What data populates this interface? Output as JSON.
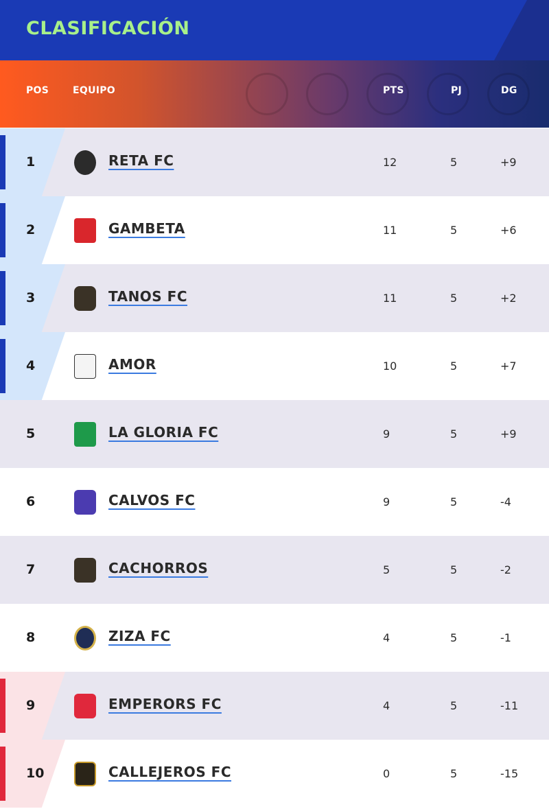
{
  "title": "CLASIFICACIÓN",
  "columns": {
    "pos": "POS",
    "team": "EQUIPO",
    "pts": "PTS",
    "pj": "PJ",
    "dg": "DG"
  },
  "colors": {
    "title_bg": "#1a3ab5",
    "title_text": "#a8f08a",
    "qualify": "#1a3ab5",
    "relegate": "#e0283c",
    "link_underline": "#3a7ae0"
  },
  "rows": [
    {
      "pos": "1",
      "team": "RETA FC",
      "pts": "12",
      "pj": "5",
      "dg": "+9",
      "zone": "qualify",
      "logo_icon": "reta-fc-crest-icon"
    },
    {
      "pos": "2",
      "team": "GAMBETA",
      "pts": "11",
      "pj": "5",
      "dg": "+6",
      "zone": "qualify",
      "logo_icon": "gambeta-crest-icon"
    },
    {
      "pos": "3",
      "team": "TANOS FC",
      "pts": "11",
      "pj": "5",
      "dg": "+2",
      "zone": "qualify",
      "logo_icon": "tanos-fc-crest-icon"
    },
    {
      "pos": "4",
      "team": "AMOR",
      "pts": "10",
      "pj": "5",
      "dg": "+7",
      "zone": "qualify",
      "logo_icon": "amor-crest-icon"
    },
    {
      "pos": "5",
      "team": "LA GLORIA FC",
      "pts": "9",
      "pj": "5",
      "dg": "+9",
      "zone": "none",
      "logo_icon": "la-gloria-fc-crest-icon"
    },
    {
      "pos": "6",
      "team": "CALVOS FC",
      "pts": "9",
      "pj": "5",
      "dg": "-4",
      "zone": "none",
      "logo_icon": "calvos-fc-crest-icon"
    },
    {
      "pos": "7",
      "team": "CACHORROS",
      "pts": "5",
      "pj": "5",
      "dg": "-2",
      "zone": "none",
      "logo_icon": "cachorros-crest-icon"
    },
    {
      "pos": "8",
      "team": "ZIZA FC",
      "pts": "4",
      "pj": "5",
      "dg": "-1",
      "zone": "none",
      "logo_icon": "ziza-fc-crest-icon"
    },
    {
      "pos": "9",
      "team": "EMPERORS FC",
      "pts": "4",
      "pj": "5",
      "dg": "-11",
      "zone": "relegate",
      "logo_icon": "emperors-fc-crest-icon"
    },
    {
      "pos": "10",
      "team": "CALLEJEROS FC",
      "pts": "0",
      "pj": "5",
      "dg": "-15",
      "zone": "relegate",
      "logo_icon": "callejeros-fc-crest-icon"
    }
  ]
}
